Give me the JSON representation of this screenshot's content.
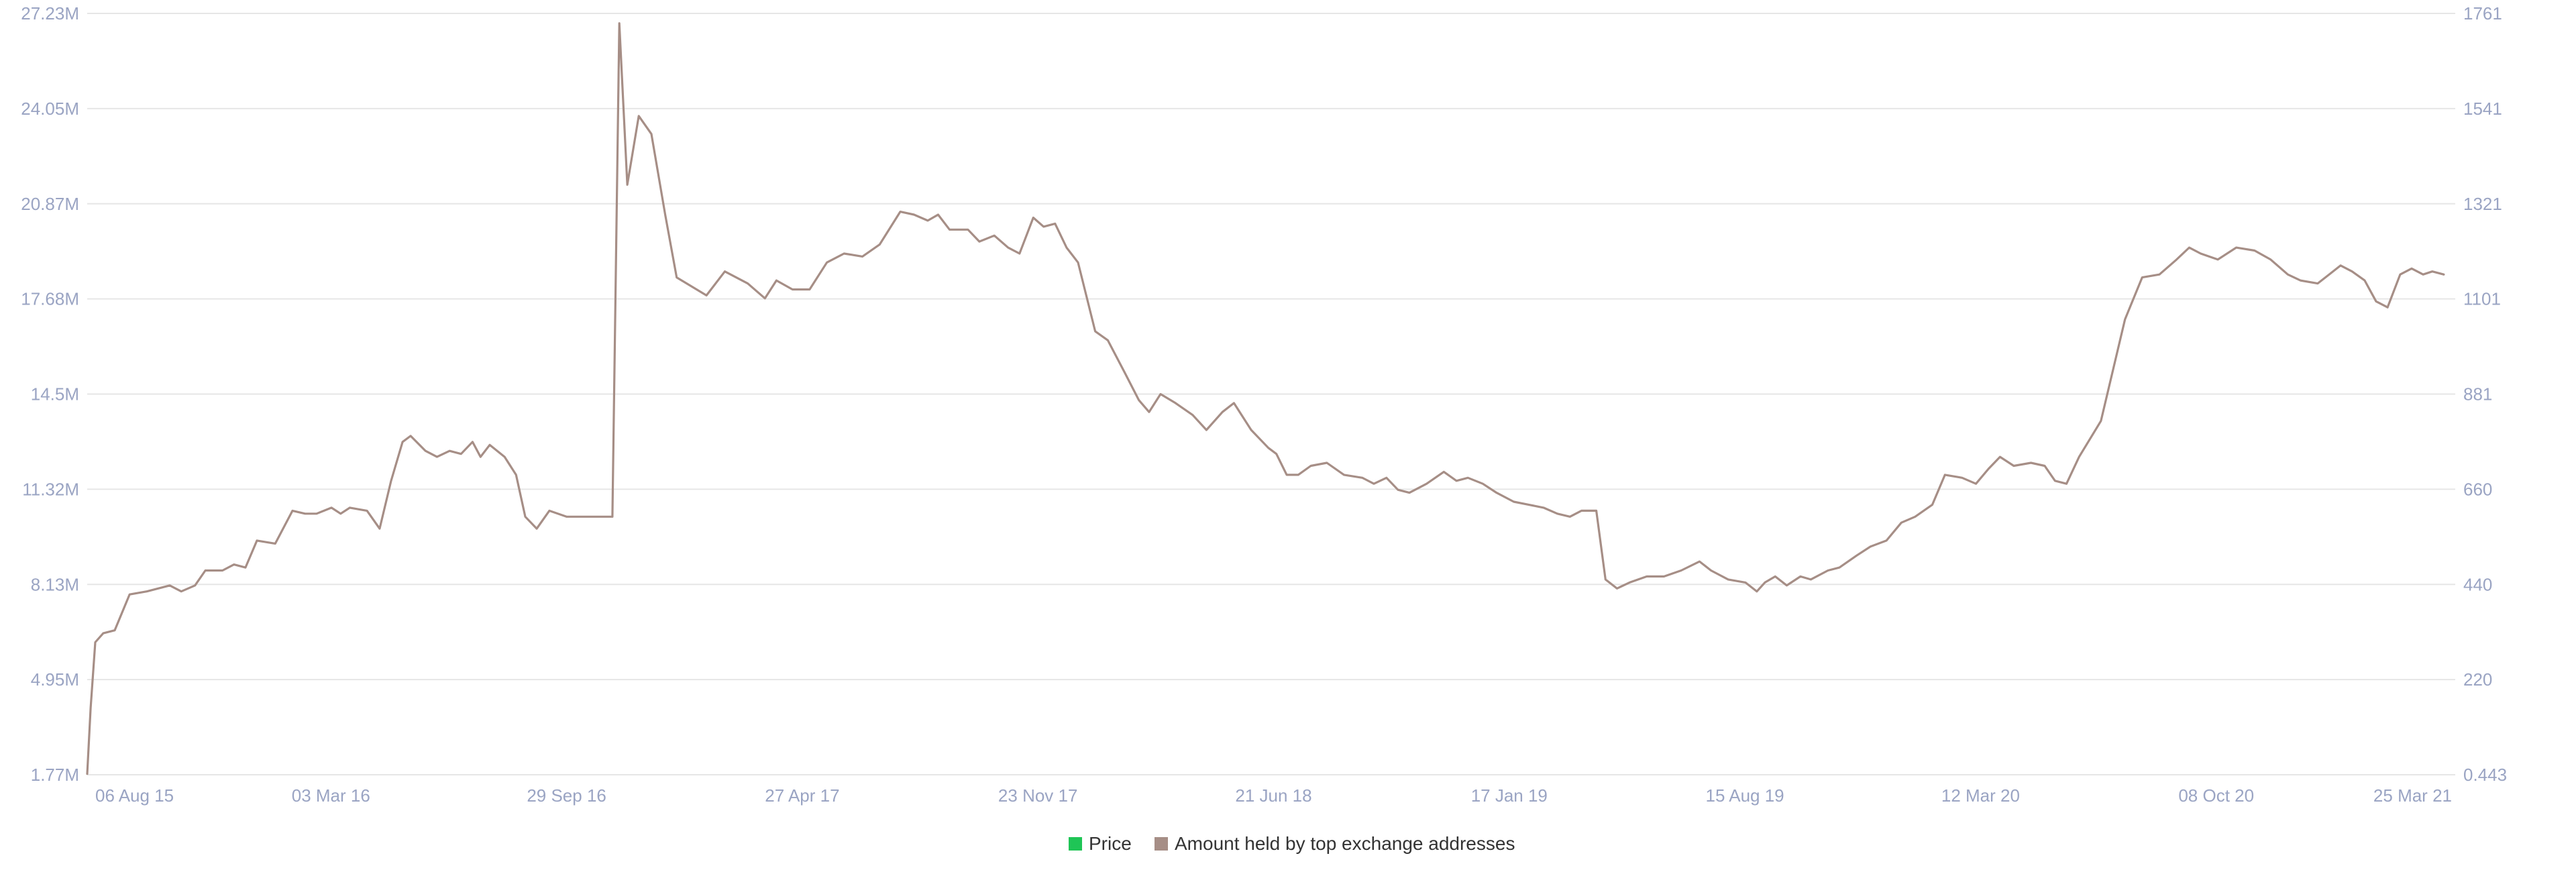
{
  "colors": {
    "price": "#1fc556",
    "holdings": "#a68e86",
    "ticks": "#9aa4c3",
    "grid": "#e6e6e6"
  },
  "chart_data": {
    "type": "line",
    "x_type": "date",
    "xlim": [
      "2015-07-30",
      "2021-03-25"
    ],
    "x_ticks": [
      "06 Aug 15",
      "03 Mar 16",
      "29 Sep 16",
      "27 Apr 17",
      "23 Nov 17",
      "21 Jun 18",
      "17 Jan 19",
      "15 Aug 19",
      "12 Mar 20",
      "08 Oct 20",
      "25 Mar 21"
    ],
    "y_left": {
      "ylim": [
        1.77,
        27.23
      ],
      "ticks": [
        "1.77M",
        "4.95M",
        "8.13M",
        "11.32M",
        "14.5M",
        "17.68M",
        "20.87M",
        "24.05M",
        "27.23M"
      ]
    },
    "y_right": {
      "ylim": [
        0.443,
        1761
      ],
      "ticks": [
        "0.443",
        "220",
        "440",
        "660",
        "881",
        "1101",
        "1321",
        "1541",
        "1761"
      ]
    },
    "grid": true,
    "legend": "bottom-center",
    "series": [
      {
        "name": "Amount held by top exchange addresses",
        "axis": "left",
        "points": [
          [
            "2015-07-30",
            1.8
          ],
          [
            "2015-08-02",
            4.0
          ],
          [
            "2015-08-06",
            6.2
          ],
          [
            "2015-08-13",
            6.5
          ],
          [
            "2015-08-23",
            6.6
          ],
          [
            "2015-09-05",
            7.8
          ],
          [
            "2015-09-20",
            7.9
          ],
          [
            "2015-10-10",
            8.1
          ],
          [
            "2015-10-20",
            7.9
          ],
          [
            "2015-11-01",
            8.1
          ],
          [
            "2015-11-10",
            8.6
          ],
          [
            "2015-11-25",
            8.6
          ],
          [
            "2015-12-05",
            8.8
          ],
          [
            "2015-12-15",
            8.7
          ],
          [
            "2015-12-25",
            9.6
          ],
          [
            "2016-01-10",
            9.5
          ],
          [
            "2016-01-25",
            10.6
          ],
          [
            "2016-02-05",
            10.5
          ],
          [
            "2016-02-15",
            10.5
          ],
          [
            "2016-02-28",
            10.7
          ],
          [
            "2016-03-07",
            10.5
          ],
          [
            "2016-03-15",
            10.7
          ],
          [
            "2016-03-30",
            10.6
          ],
          [
            "2016-04-10",
            10.0
          ],
          [
            "2016-04-20",
            11.6
          ],
          [
            "2016-04-30",
            12.9
          ],
          [
            "2016-05-07",
            13.1
          ],
          [
            "2016-05-20",
            12.6
          ],
          [
            "2016-05-30",
            12.4
          ],
          [
            "2016-06-10",
            12.6
          ],
          [
            "2016-06-20",
            12.5
          ],
          [
            "2016-06-30",
            12.9
          ],
          [
            "2016-07-07",
            12.4
          ],
          [
            "2016-07-15",
            12.8
          ],
          [
            "2016-07-28",
            12.4
          ],
          [
            "2016-08-07",
            11.8
          ],
          [
            "2016-08-15",
            10.4
          ],
          [
            "2016-08-25",
            10.0
          ],
          [
            "2016-09-05",
            10.6
          ],
          [
            "2016-09-20",
            10.4
          ],
          [
            "2016-10-15",
            10.4
          ],
          [
            "2016-10-30",
            10.4
          ],
          [
            "2016-11-05",
            26.9
          ],
          [
            "2016-11-12",
            21.5
          ],
          [
            "2016-11-22",
            23.8
          ],
          [
            "2016-12-03",
            23.2
          ],
          [
            "2016-12-15",
            20.5
          ],
          [
            "2016-12-25",
            18.4
          ],
          [
            "2017-01-20",
            17.8
          ],
          [
            "2017-02-05",
            18.6
          ],
          [
            "2017-02-25",
            18.2
          ],
          [
            "2017-03-12",
            17.7
          ],
          [
            "2017-03-22",
            18.3
          ],
          [
            "2017-04-05",
            18.0
          ],
          [
            "2017-04-20",
            18.0
          ],
          [
            "2017-05-05",
            18.9
          ],
          [
            "2017-05-20",
            19.2
          ],
          [
            "2017-06-05",
            19.1
          ],
          [
            "2017-06-20",
            19.5
          ],
          [
            "2017-07-08",
            20.6
          ],
          [
            "2017-07-20",
            20.5
          ],
          [
            "2017-08-01",
            20.3
          ],
          [
            "2017-08-10",
            20.5
          ],
          [
            "2017-08-20",
            20.0
          ],
          [
            "2017-09-05",
            20.0
          ],
          [
            "2017-09-15",
            19.6
          ],
          [
            "2017-09-28",
            19.8
          ],
          [
            "2017-10-10",
            19.4
          ],
          [
            "2017-10-20",
            19.2
          ],
          [
            "2017-11-01",
            20.4
          ],
          [
            "2017-11-10",
            20.1
          ],
          [
            "2017-11-20",
            20.2
          ],
          [
            "2017-11-30",
            19.4
          ],
          [
            "2017-12-10",
            18.9
          ],
          [
            "2017-12-25",
            16.6
          ],
          [
            "2018-01-05",
            16.3
          ],
          [
            "2018-01-20",
            15.2
          ],
          [
            "2018-02-01",
            14.3
          ],
          [
            "2018-02-10",
            13.9
          ],
          [
            "2018-02-20",
            14.5
          ],
          [
            "2018-03-05",
            14.2
          ],
          [
            "2018-03-20",
            13.8
          ],
          [
            "2018-04-01",
            13.3
          ],
          [
            "2018-04-15",
            13.9
          ],
          [
            "2018-04-25",
            14.2
          ],
          [
            "2018-05-10",
            13.3
          ],
          [
            "2018-05-25",
            12.7
          ],
          [
            "2018-06-01",
            12.5
          ],
          [
            "2018-06-10",
            11.8
          ],
          [
            "2018-06-20",
            11.8
          ],
          [
            "2018-07-01",
            12.1
          ],
          [
            "2018-07-15",
            12.2
          ],
          [
            "2018-07-30",
            11.8
          ],
          [
            "2018-08-15",
            11.7
          ],
          [
            "2018-08-25",
            11.5
          ],
          [
            "2018-09-05",
            11.7
          ],
          [
            "2018-09-15",
            11.3
          ],
          [
            "2018-09-25",
            11.2
          ],
          [
            "2018-10-10",
            11.5
          ],
          [
            "2018-10-25",
            11.9
          ],
          [
            "2018-11-05",
            11.6
          ],
          [
            "2018-11-15",
            11.7
          ],
          [
            "2018-11-28",
            11.5
          ],
          [
            "2018-12-10",
            11.2
          ],
          [
            "2018-12-25",
            10.9
          ],
          [
            "2019-01-07",
            10.8
          ],
          [
            "2019-01-20",
            10.7
          ],
          [
            "2019-02-01",
            10.5
          ],
          [
            "2019-02-12",
            10.4
          ],
          [
            "2019-02-22",
            10.6
          ],
          [
            "2019-03-07",
            10.6
          ],
          [
            "2019-03-15",
            8.3
          ],
          [
            "2019-03-25",
            8.0
          ],
          [
            "2019-04-05",
            8.2
          ],
          [
            "2019-04-20",
            8.4
          ],
          [
            "2019-05-05",
            8.4
          ],
          [
            "2019-05-20",
            8.6
          ],
          [
            "2019-06-05",
            8.9
          ],
          [
            "2019-06-15",
            8.6
          ],
          [
            "2019-06-30",
            8.3
          ],
          [
            "2019-07-15",
            8.2
          ],
          [
            "2019-07-25",
            7.9
          ],
          [
            "2019-08-01",
            8.2
          ],
          [
            "2019-08-10",
            8.4
          ],
          [
            "2019-08-20",
            8.1
          ],
          [
            "2019-09-01",
            8.4
          ],
          [
            "2019-09-10",
            8.3
          ],
          [
            "2019-09-25",
            8.6
          ],
          [
            "2019-10-05",
            8.7
          ],
          [
            "2019-10-20",
            9.1
          ],
          [
            "2019-11-01",
            9.4
          ],
          [
            "2019-11-15",
            9.6
          ],
          [
            "2019-11-28",
            10.2
          ],
          [
            "2019-12-10",
            10.4
          ],
          [
            "2019-12-25",
            10.8
          ],
          [
            "2020-01-05",
            11.8
          ],
          [
            "2020-01-20",
            11.7
          ],
          [
            "2020-02-01",
            11.5
          ],
          [
            "2020-02-12",
            12.0
          ],
          [
            "2020-02-22",
            12.4
          ],
          [
            "2020-03-05",
            12.1
          ],
          [
            "2020-03-20",
            12.2
          ],
          [
            "2020-04-01",
            12.1
          ],
          [
            "2020-04-10",
            11.6
          ],
          [
            "2020-04-20",
            11.5
          ],
          [
            "2020-05-01",
            12.4
          ],
          [
            "2020-05-20",
            13.6
          ],
          [
            "2020-06-10",
            17.0
          ],
          [
            "2020-06-25",
            18.4
          ],
          [
            "2020-07-10",
            18.5
          ],
          [
            "2020-07-25",
            19.0
          ],
          [
            "2020-08-05",
            19.4
          ],
          [
            "2020-08-15",
            19.2
          ],
          [
            "2020-08-30",
            19.0
          ],
          [
            "2020-09-15",
            19.4
          ],
          [
            "2020-10-01",
            19.3
          ],
          [
            "2020-10-15",
            19.0
          ],
          [
            "2020-10-30",
            18.5
          ],
          [
            "2020-11-10",
            18.3
          ],
          [
            "2020-11-25",
            18.2
          ],
          [
            "2020-12-05",
            18.5
          ],
          [
            "2020-12-15",
            18.8
          ],
          [
            "2020-12-25",
            18.6
          ],
          [
            "2021-01-05",
            18.3
          ],
          [
            "2021-01-15",
            17.6
          ],
          [
            "2021-01-25",
            17.4
          ],
          [
            "2021-02-05",
            18.5
          ],
          [
            "2021-02-15",
            18.7
          ],
          [
            "2021-02-25",
            18.5
          ],
          [
            "2021-03-05",
            18.6
          ],
          [
            "2021-03-15",
            18.5
          ]
        ]
      },
      {
        "name": "Price",
        "axis": "right",
        "points": []
      }
    ]
  },
  "legend_items": [
    {
      "label": "Price",
      "color": "#1fc556"
    },
    {
      "label": "Amount held by top exchange addresses",
      "color": "#a68e86"
    }
  ]
}
